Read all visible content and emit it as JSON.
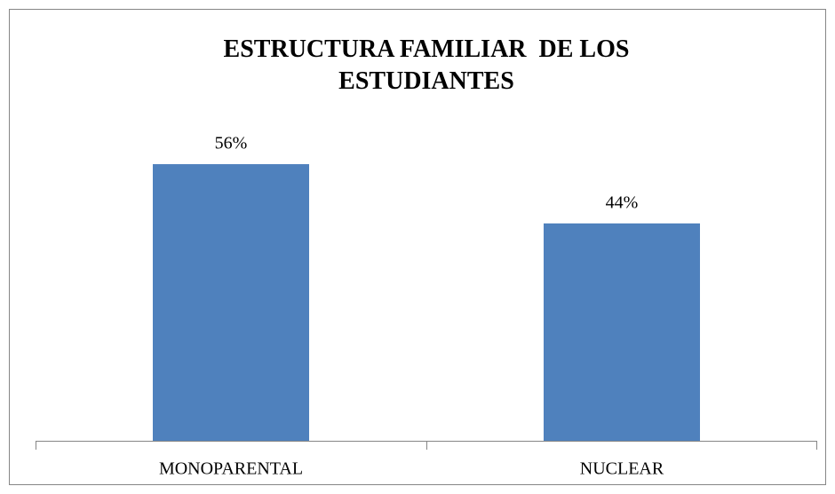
{
  "chart_data": {
    "type": "bar",
    "title": "ESTRUCTURA FAMILIAR  DE LOS ESTUDIANTES",
    "categories": [
      "MONOPARENTAL",
      "NUCLEAR"
    ],
    "values": [
      56,
      44
    ],
    "value_labels": [
      "56%",
      "44%"
    ],
    "color": "#4f81bd"
  }
}
